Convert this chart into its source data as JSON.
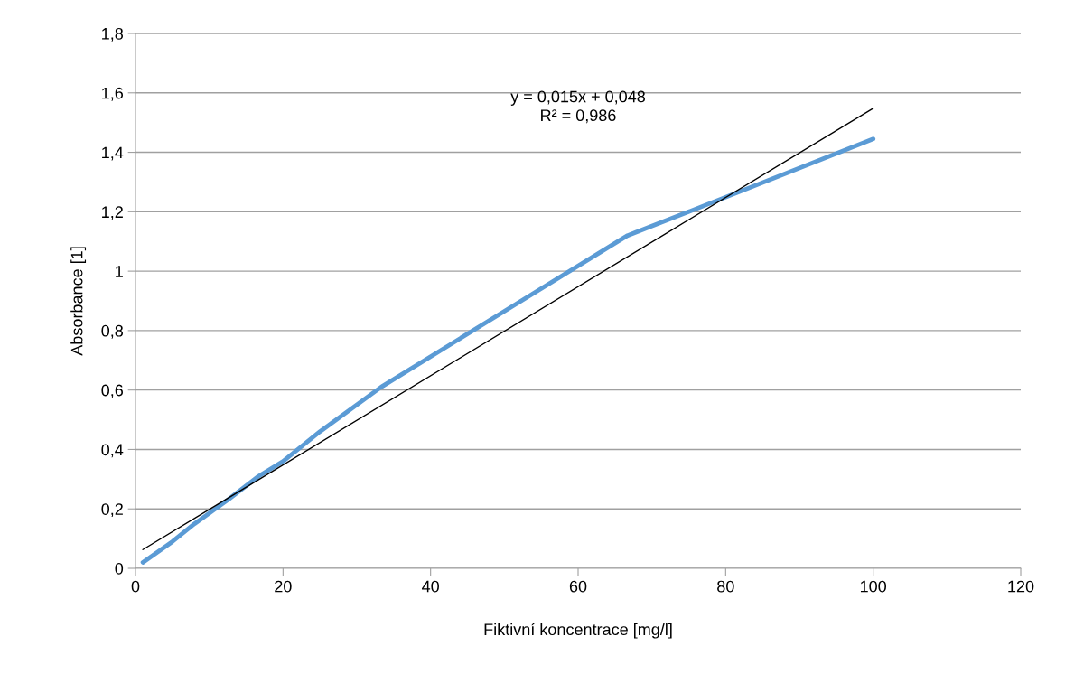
{
  "chart_data": {
    "type": "line",
    "xlabel": "Fiktivní koncentrace [mg/l]",
    "ylabel": "Absorbance [1]",
    "xlim": [
      0,
      120
    ],
    "xticks": [
      0,
      20,
      40,
      60,
      80,
      100,
      120
    ],
    "ylim": [
      0,
      1.8
    ],
    "yticks": [
      {
        "value": 0,
        "label": "0"
      },
      {
        "value": 0.2,
        "label": "0,2"
      },
      {
        "value": 0.4,
        "label": "0,4"
      },
      {
        "value": 0.6,
        "label": "0,6"
      },
      {
        "value": 0.8,
        "label": "0,8"
      },
      {
        "value": 1,
        "label": "1"
      },
      {
        "value": 1.2,
        "label": "1,2"
      },
      {
        "value": 1.4,
        "label": "1,4"
      },
      {
        "value": 1.6,
        "label": "1,6"
      },
      {
        "value": 1.8,
        "label": "1,8"
      }
    ],
    "grid": "y",
    "legend": false,
    "series": [
      {
        "color": "#5b9bd5",
        "x": [
          1,
          5,
          8,
          12.5,
          16.7,
          20,
          25,
          33.3,
          50,
          66.7,
          75,
          100
        ],
        "values": [
          0.02,
          0.09,
          0.15,
          0.23,
          0.31,
          0.36,
          0.46,
          0.61,
          0.865,
          1.12,
          1.2,
          1.445
        ]
      },
      {
        "type": "line",
        "color": "#000000",
        "x": [
          1,
          100
        ],
        "values": [
          0.063,
          1.548
        ]
      }
    ],
    "annotations": [
      "y = 0,015x + 0,048\nR² = 0,986"
    ]
  }
}
